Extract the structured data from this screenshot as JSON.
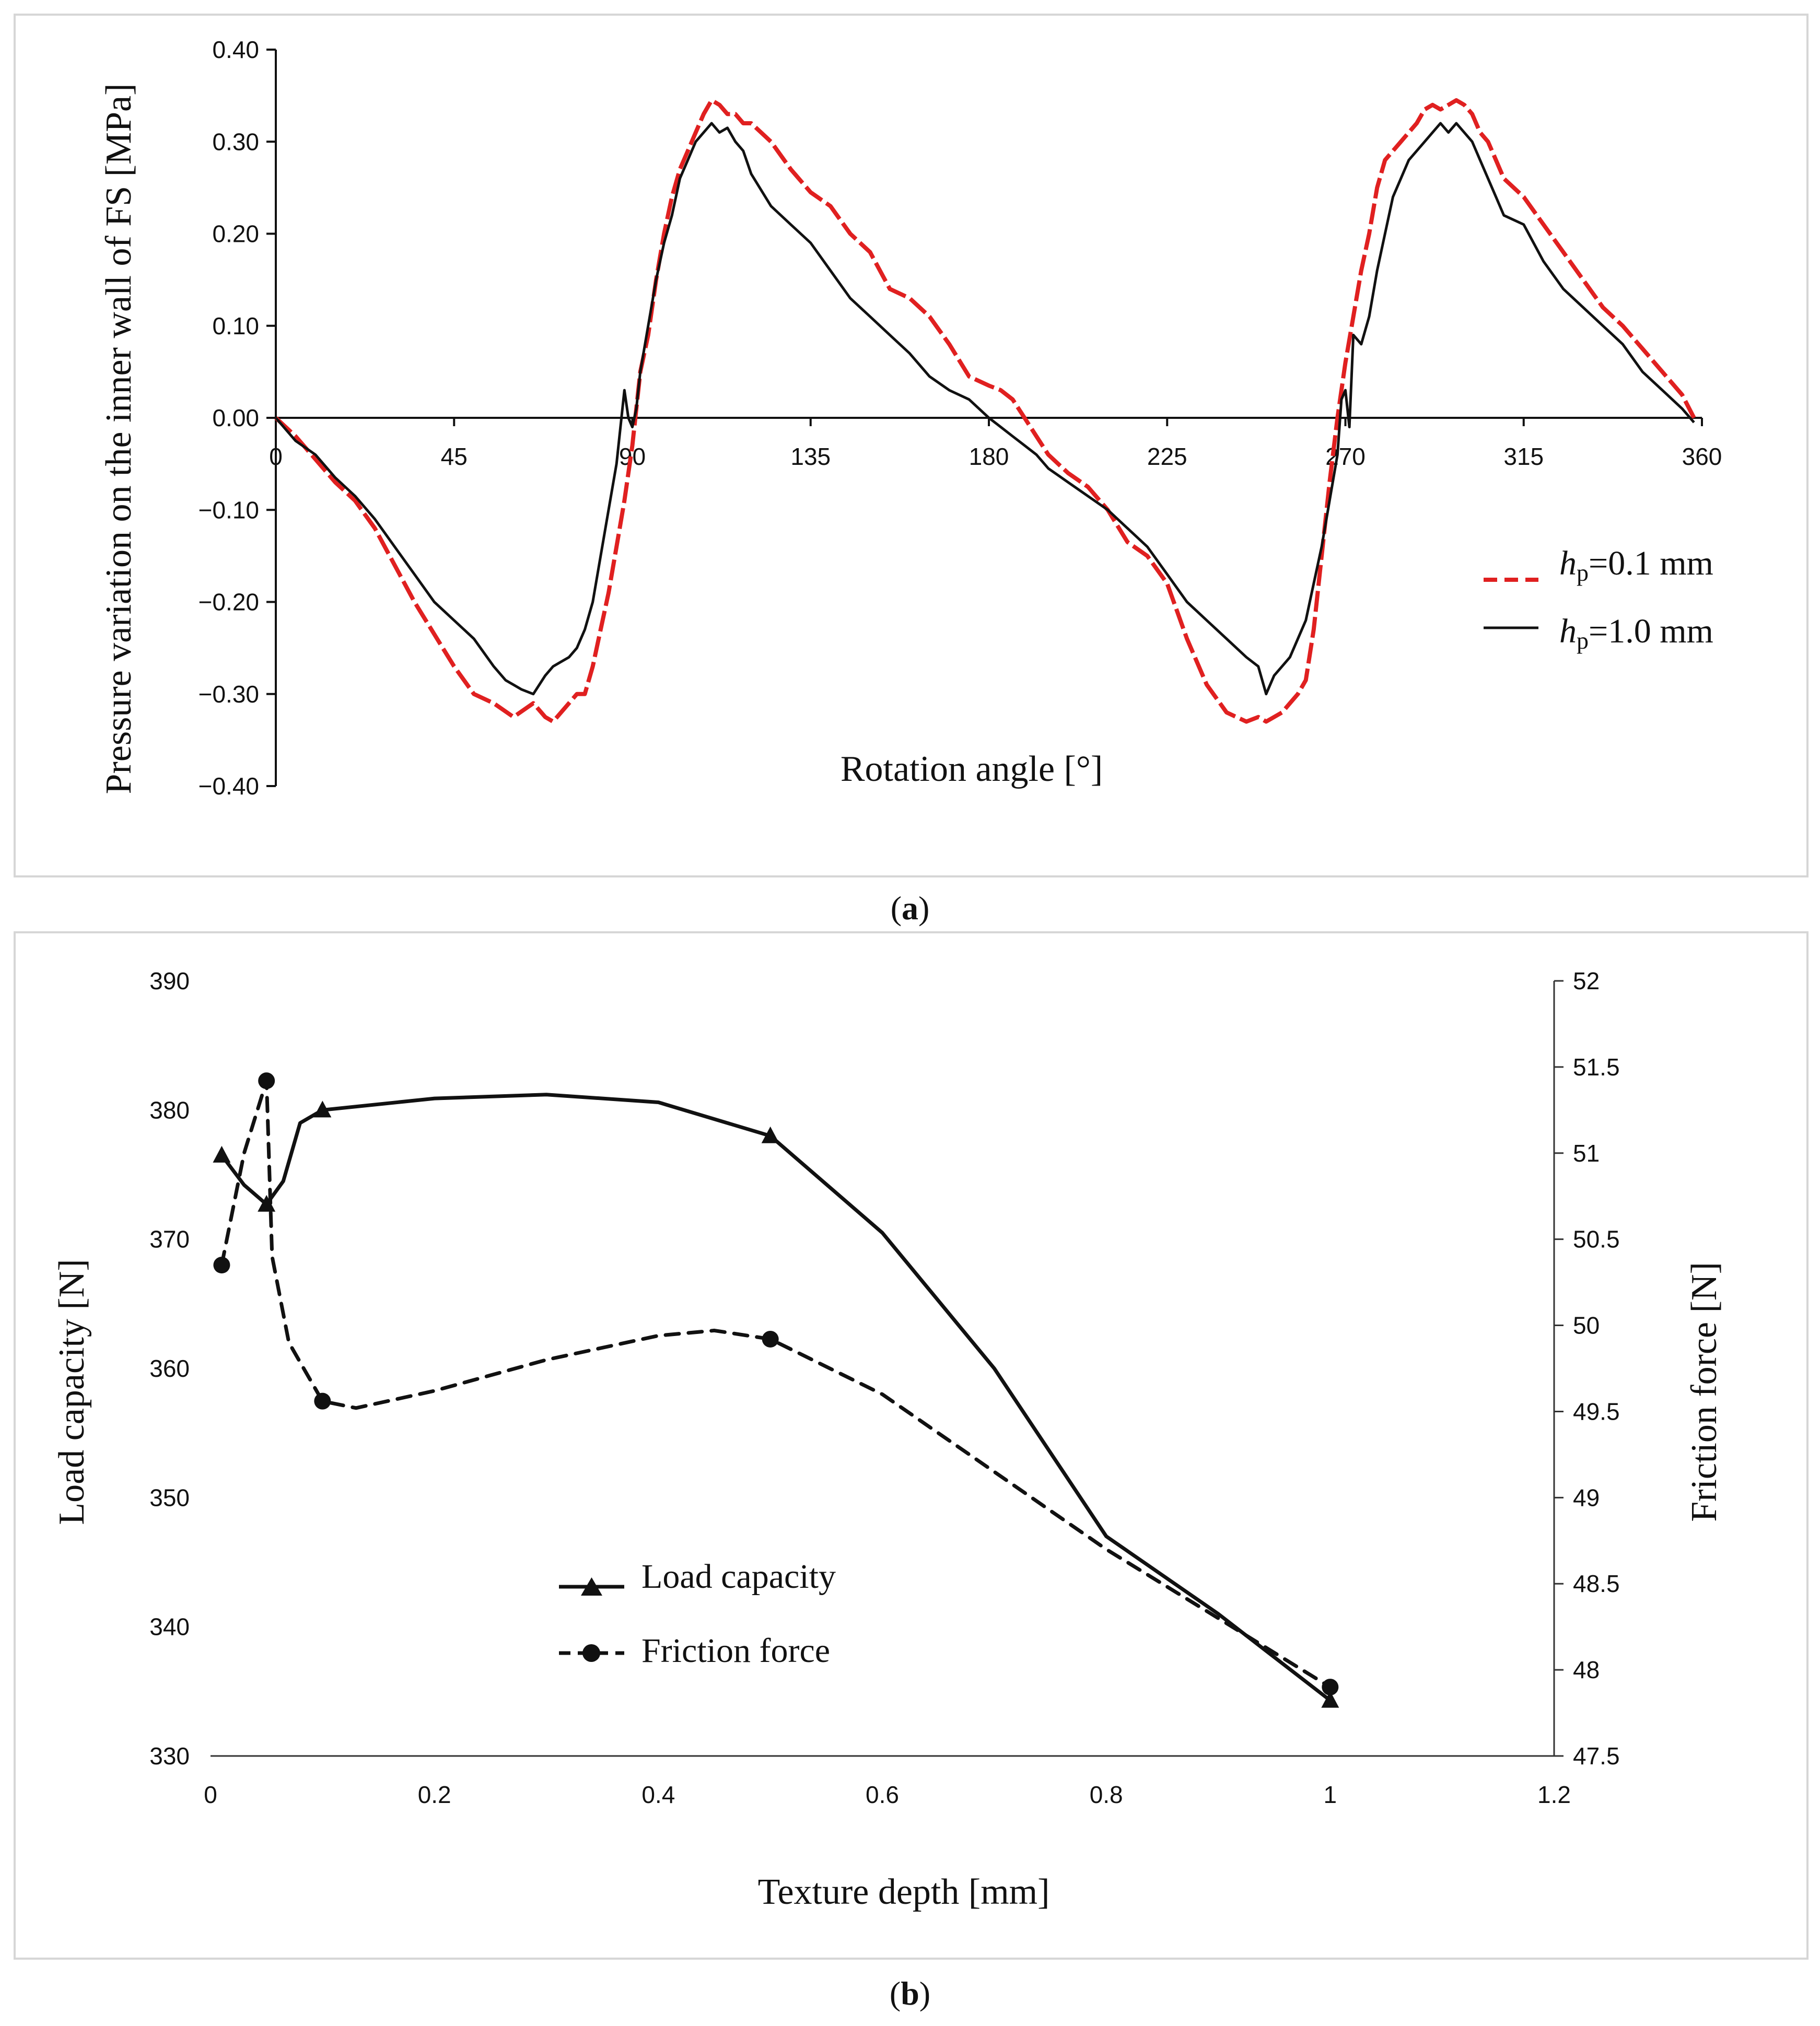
{
  "chart_data": [
    {
      "id": "a",
      "type": "line",
      "caption": "a",
      "xlabel": "Rotation angle [°]",
      "ylabel": "Pressure variation on the inner wall of FS [MPa]",
      "xlim": [
        0,
        360
      ],
      "ylim": [
        -0.4,
        0.4
      ],
      "x_ticks": [
        "0",
        "45",
        "90",
        "135",
        "180",
        "225",
        "270",
        "315",
        "360"
      ],
      "x_tick_values": [
        0,
        45,
        90,
        135,
        180,
        225,
        270,
        315,
        360
      ],
      "y_ticks": [
        "0.40",
        "0.30",
        "0.20",
        "0.10",
        "0.00",
        "−0.10",
        "−0.20",
        "−0.30",
        "−0.40"
      ],
      "y_tick_values": [
        0.4,
        0.3,
        0.2,
        0.1,
        0.0,
        -0.1,
        -0.2,
        -0.3,
        -0.4
      ],
      "legend_position": "right",
      "series": [
        {
          "name_italic": "h",
          "name_sub": "p",
          "name_rest": "=0.1 mm",
          "color": "#e02020",
          "style": "dashed",
          "x": [
            0,
            5,
            10,
            15,
            20,
            25,
            30,
            35,
            40,
            45,
            50,
            55,
            60,
            65,
            68,
            70,
            72,
            74,
            76,
            78,
            80,
            82,
            84,
            86,
            88,
            90,
            92,
            94,
            96,
            98,
            100,
            102,
            104,
            106,
            108,
            110,
            112,
            114,
            116,
            118,
            120,
            125,
            130,
            135,
            140,
            145,
            150,
            155,
            160,
            165,
            170,
            175,
            180,
            183,
            186,
            189,
            192,
            195,
            200,
            205,
            210,
            215,
            220,
            225,
            230,
            235,
            240,
            245,
            248,
            250,
            252,
            254,
            256,
            258,
            260,
            262,
            264,
            266,
            268,
            270,
            272,
            274,
            276,
            278,
            280,
            282,
            284,
            286,
            288,
            290,
            292,
            294,
            296,
            298,
            300,
            302,
            304,
            306,
            308,
            310,
            315,
            320,
            325,
            330,
            335,
            340,
            345,
            350,
            355,
            358
          ],
          "y": [
            0.0,
            -0.02,
            -0.045,
            -0.07,
            -0.09,
            -0.12,
            -0.16,
            -0.2,
            -0.235,
            -0.27,
            -0.3,
            -0.31,
            -0.325,
            -0.31,
            -0.325,
            -0.33,
            -0.32,
            -0.31,
            -0.3,
            -0.3,
            -0.27,
            -0.23,
            -0.19,
            -0.14,
            -0.09,
            -0.03,
            0.05,
            0.09,
            0.15,
            0.2,
            0.24,
            0.27,
            0.29,
            0.31,
            0.33,
            0.345,
            0.34,
            0.33,
            0.33,
            0.32,
            0.32,
            0.3,
            0.27,
            0.245,
            0.23,
            0.2,
            0.18,
            0.14,
            0.13,
            0.11,
            0.08,
            0.045,
            0.035,
            0.03,
            0.02,
            0.0,
            -0.02,
            -0.04,
            -0.06,
            -0.075,
            -0.1,
            -0.135,
            -0.15,
            -0.18,
            -0.24,
            -0.29,
            -0.32,
            -0.33,
            -0.325,
            -0.33,
            -0.325,
            -0.32,
            -0.31,
            -0.3,
            -0.285,
            -0.23,
            -0.15,
            -0.07,
            0.0,
            0.06,
            0.11,
            0.16,
            0.2,
            0.25,
            0.28,
            0.29,
            0.3,
            0.31,
            0.32,
            0.335,
            0.34,
            0.335,
            0.34,
            0.345,
            0.34,
            0.33,
            0.31,
            0.3,
            0.28,
            0.26,
            0.24,
            0.21,
            0.18,
            0.15,
            0.12,
            0.1,
            0.075,
            0.05,
            0.025,
            0.0
          ]
        },
        {
          "name_italic": "h",
          "name_sub": "p",
          "name_rest": "=1.0 mm",
          "color": "#111111",
          "style": "solid",
          "x": [
            0,
            5,
            10,
            15,
            20,
            25,
            30,
            35,
            40,
            45,
            50,
            55,
            58,
            60,
            62,
            65,
            68,
            70,
            72,
            74,
            76,
            78,
            80,
            82,
            84,
            86,
            88,
            89,
            90,
            91,
            92,
            94,
            96,
            98,
            100,
            102,
            104,
            106,
            108,
            110,
            112,
            114,
            116,
            118,
            120,
            125,
            130,
            135,
            140,
            145,
            150,
            155,
            160,
            165,
            170,
            175,
            180,
            183,
            186,
            189,
            192,
            195,
            200,
            205,
            210,
            215,
            220,
            225,
            230,
            235,
            240,
            245,
            248,
            250,
            252,
            254,
            256,
            258,
            260,
            262,
            264,
            266,
            268,
            269,
            270,
            271,
            272,
            274,
            276,
            278,
            280,
            282,
            284,
            286,
            288,
            290,
            292,
            294,
            296,
            298,
            300,
            302,
            304,
            306,
            308,
            310,
            315,
            320,
            325,
            330,
            335,
            340,
            345,
            350,
            355,
            358
          ],
          "y": [
            0.0,
            -0.025,
            -0.04,
            -0.065,
            -0.085,
            -0.11,
            -0.14,
            -0.17,
            -0.2,
            -0.22,
            -0.24,
            -0.27,
            -0.285,
            -0.29,
            -0.295,
            -0.3,
            -0.28,
            -0.27,
            -0.265,
            -0.26,
            -0.25,
            -0.23,
            -0.2,
            -0.15,
            -0.1,
            -0.05,
            0.03,
            0.0,
            -0.01,
            0.01,
            0.05,
            0.1,
            0.15,
            0.19,
            0.22,
            0.26,
            0.28,
            0.3,
            0.31,
            0.32,
            0.31,
            0.315,
            0.3,
            0.29,
            0.265,
            0.23,
            0.21,
            0.19,
            0.16,
            0.13,
            0.11,
            0.09,
            0.07,
            0.045,
            0.03,
            0.02,
            0.0,
            -0.01,
            -0.02,
            -0.03,
            -0.04,
            -0.055,
            -0.07,
            -0.085,
            -0.1,
            -0.12,
            -0.14,
            -0.17,
            -0.2,
            -0.22,
            -0.24,
            -0.26,
            -0.27,
            -0.3,
            -0.28,
            -0.27,
            -0.26,
            -0.24,
            -0.22,
            -0.18,
            -0.14,
            -0.09,
            -0.04,
            0.02,
            0.03,
            -0.01,
            0.09,
            0.08,
            0.11,
            0.16,
            0.2,
            0.24,
            0.26,
            0.28,
            0.29,
            0.3,
            0.31,
            0.32,
            0.31,
            0.32,
            0.31,
            0.3,
            0.28,
            0.26,
            0.24,
            0.22,
            0.21,
            0.17,
            0.14,
            0.12,
            0.1,
            0.08,
            0.05,
            0.03,
            0.01,
            -0.005
          ]
        }
      ]
    },
    {
      "id": "b",
      "type": "line",
      "caption": "b",
      "xlabel": "Texture depth  [mm]",
      "ylabel": "Load capacity [N]",
      "y2label": "Friction force [N]",
      "xlim": [
        0,
        1.2
      ],
      "ylim": [
        330,
        390
      ],
      "y2lim": [
        47.5,
        52
      ],
      "x_ticks": [
        "0",
        "0.2",
        "0.4",
        "0.6",
        "0.8",
        "1",
        "1.2"
      ],
      "x_tick_values": [
        0,
        0.2,
        0.4,
        0.6,
        0.8,
        1.0,
        1.2
      ],
      "y_ticks": [
        "390",
        "380",
        "370",
        "360",
        "350",
        "340",
        "330"
      ],
      "y_tick_values": [
        390,
        380,
        370,
        360,
        350,
        340,
        330
      ],
      "y2_ticks": [
        "52",
        "51.5",
        "51",
        "50.5",
        "50",
        "49.5",
        "49",
        "48.5",
        "48",
        "47.5"
      ],
      "y2_tick_values": [
        52,
        51.5,
        51,
        50.5,
        50,
        49.5,
        49,
        48.5,
        48,
        47.5
      ],
      "legend_position": "lower-center",
      "series": [
        {
          "name": "Load capacity",
          "axis": "left",
          "marker": "triangle",
          "style": "solid",
          "x": [
            0.01,
            0.05,
            0.1,
            0.5,
            1.0
          ],
          "y": [
            376.5,
            372.7,
            380.0,
            378.0,
            334.3
          ],
          "curve_x": [
            0.01,
            0.03,
            0.05,
            0.065,
            0.08,
            0.1,
            0.2,
            0.3,
            0.4,
            0.5,
            0.6,
            0.7,
            0.8,
            0.9,
            1.0
          ],
          "curve_y": [
            376.5,
            374.2,
            372.7,
            374.5,
            379.0,
            380.0,
            380.9,
            381.2,
            380.6,
            378.0,
            370.5,
            360.0,
            347.0,
            341.0,
            334.3
          ]
        },
        {
          "name": "Friction force",
          "axis": "right",
          "marker": "circle",
          "style": "dashed",
          "x": [
            0.01,
            0.05,
            0.1,
            0.5,
            1.0
          ],
          "y": [
            50.35,
            51.42,
            49.56,
            49.92,
            47.9
          ],
          "curve_x": [
            0.01,
            0.03,
            0.05,
            0.055,
            0.07,
            0.1,
            0.13,
            0.2,
            0.3,
            0.4,
            0.45,
            0.5,
            0.6,
            0.7,
            0.8,
            0.9,
            1.0
          ],
          "curve_y": [
            50.35,
            51.0,
            51.42,
            50.4,
            49.9,
            49.56,
            49.52,
            49.62,
            49.8,
            49.94,
            49.97,
            49.92,
            49.6,
            49.15,
            48.7,
            48.3,
            47.9
          ]
        }
      ]
    }
  ]
}
